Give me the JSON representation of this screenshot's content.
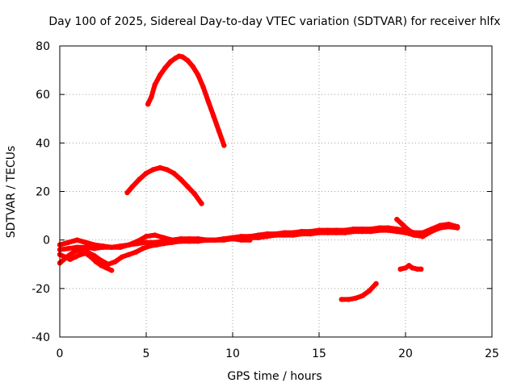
{
  "chart_data": {
    "type": "scatter",
    "title": "Day 100 of 2025, Sidereal Day-to-day VTEC variation (SDTVAR) for receiver hlfx",
    "xlabel": "GPS time / hours",
    "ylabel": "SDTVAR / TECUs",
    "xlim": [
      0,
      25
    ],
    "ylim": [
      -40,
      80
    ],
    "x_ticks": [
      0,
      5,
      10,
      15,
      20,
      25
    ],
    "y_ticks": [
      -40,
      -20,
      0,
      20,
      40,
      60,
      80
    ],
    "grid": true,
    "legend": "none",
    "colors": {
      "series": "#ff0000",
      "grid": "#a0a0a0",
      "axes": "#000000"
    },
    "series": [
      {
        "name": "arc-high",
        "x": [
          5.1,
          5.3,
          5.5,
          5.8,
          6.1,
          6.4,
          6.7,
          6.9,
          7.1,
          7.4,
          7.7,
          8.0,
          8.3,
          8.6,
          8.9,
          9.2,
          9.5
        ],
        "y": [
          56,
          59,
          64,
          68,
          71,
          73.5,
          75,
          75.8,
          75.5,
          74,
          71.5,
          68,
          63,
          57,
          51,
          45,
          39
        ]
      },
      {
        "name": "arc-mid",
        "x": [
          3.9,
          4.2,
          4.6,
          5.0,
          5.4,
          5.8,
          6.2,
          6.6,
          7.0,
          7.4,
          7.8,
          8.2
        ],
        "y": [
          19.5,
          22,
          25,
          27.5,
          29,
          29.8,
          29,
          27.5,
          25,
          22,
          19,
          15
        ]
      },
      {
        "name": "arc-low",
        "x": [
          16.3,
          16.7,
          17.1,
          17.5,
          17.9,
          18.3
        ],
        "y": [
          -24.5,
          -24.5,
          -24,
          -23,
          -21,
          -18
        ]
      },
      {
        "name": "arc-short",
        "x": [
          19.7,
          20.0,
          20.2,
          20.4,
          20.7,
          20.9
        ],
        "y": [
          -12,
          -11.5,
          -10.5,
          -11.5,
          -12,
          -12
        ]
      },
      {
        "name": "band-main",
        "x": [
          0.0,
          0.5,
          1.0,
          1.5,
          2.0,
          2.5,
          3.0,
          3.5,
          4.0,
          4.5,
          5.0,
          5.5,
          6.0,
          6.5,
          7.0,
          7.5,
          8.0,
          8.5,
          9.0,
          9.5,
          10.0,
          10.5,
          11.0,
          11.5,
          12.0,
          12.5,
          13.0,
          13.5,
          14.0,
          14.5,
          15.0,
          15.5,
          16.0,
          16.5,
          17.0,
          17.5,
          18.0,
          18.5,
          19.0,
          19.5,
          20.0,
          20.5,
          21.0,
          21.5,
          22.0,
          22.5,
          23.0
        ],
        "y": [
          -4,
          -3.5,
          -3,
          -3,
          -3.5,
          -3,
          -3,
          -2.5,
          -2,
          -1.5,
          -1,
          -1,
          -0.5,
          -0.5,
          -0.5,
          0,
          0,
          0,
          0,
          0.5,
          0.5,
          1,
          1,
          1,
          1.5,
          2,
          2,
          2,
          2.5,
          2.5,
          3,
          3,
          3,
          3,
          3.5,
          3.5,
          3.5,
          4,
          4,
          3.5,
          3,
          2,
          1.5,
          3.5,
          5,
          5.5,
          5
        ]
      },
      {
        "name": "band-upper",
        "x": [
          0.0,
          0.5,
          1.0,
          1.5,
          2.0,
          2.5,
          3.0,
          3.5,
          4.0,
          4.5,
          5.0,
          5.5,
          6.0,
          6.5,
          7.0,
          7.5,
          8.0,
          8.5,
          9.0,
          9.5,
          10.0,
          10.5,
          11.0,
          11.5,
          12.0,
          12.5,
          13.0,
          13.5,
          14.0,
          14.5,
          15.0,
          15.5,
          16.0,
          16.5,
          17.0,
          17.5,
          18.0,
          18.5,
          19.0,
          19.5,
          20.0,
          20.5,
          21.0,
          21.5,
          22.0,
          22.5,
          23.0
        ],
        "y": [
          -2,
          -1,
          0,
          -1,
          -2,
          -2.5,
          -3,
          -3,
          -2,
          -0.5,
          1.5,
          2,
          1,
          0,
          0.5,
          0.5,
          0.5,
          0,
          0,
          0.5,
          1,
          1.5,
          1.5,
          2,
          2.5,
          2.5,
          3,
          3,
          3.5,
          3.5,
          4,
          4,
          4,
          4,
          4.5,
          4.5,
          4.5,
          5,
          5,
          4.5,
          4,
          3,
          3,
          4.5,
          6,
          6.5,
          5.5
        ]
      },
      {
        "name": "band-lower",
        "x": [
          0.0,
          0.4,
          0.8,
          1.2,
          1.6,
          2.0,
          2.4,
          2.8,
          3.2,
          3.6,
          4.0,
          4.4,
          4.8,
          5.2,
          5.6,
          6.0,
          6.5,
          7.0,
          7.5,
          8.0,
          8.5,
          9.0,
          9.5,
          10.0,
          10.5,
          11.0
        ],
        "y": [
          -9.5,
          -7,
          -5,
          -4,
          -5,
          -6.5,
          -8.5,
          -10,
          -9,
          -7,
          -6,
          -5,
          -3.5,
          -2.5,
          -2,
          -1.5,
          -1,
          -0.5,
          -0.5,
          -0.5,
          0,
          0,
          0,
          0.5,
          0,
          0
        ]
      },
      {
        "name": "band-low-left",
        "x": [
          0.0,
          0.3,
          0.6,
          0.9,
          1.2,
          1.5,
          1.8,
          2.1,
          2.4,
          2.7,
          3.0
        ],
        "y": [
          -6,
          -7,
          -8,
          -7,
          -6,
          -5.5,
          -7,
          -9,
          -10.5,
          -11.5,
          -12.5
        ]
      },
      {
        "name": "spike-right",
        "x": [
          19.5,
          19.8,
          20.1,
          20.4,
          20.7,
          21.0
        ],
        "y": [
          8.5,
          6.5,
          4.5,
          3,
          2,
          1.5
        ]
      }
    ]
  }
}
